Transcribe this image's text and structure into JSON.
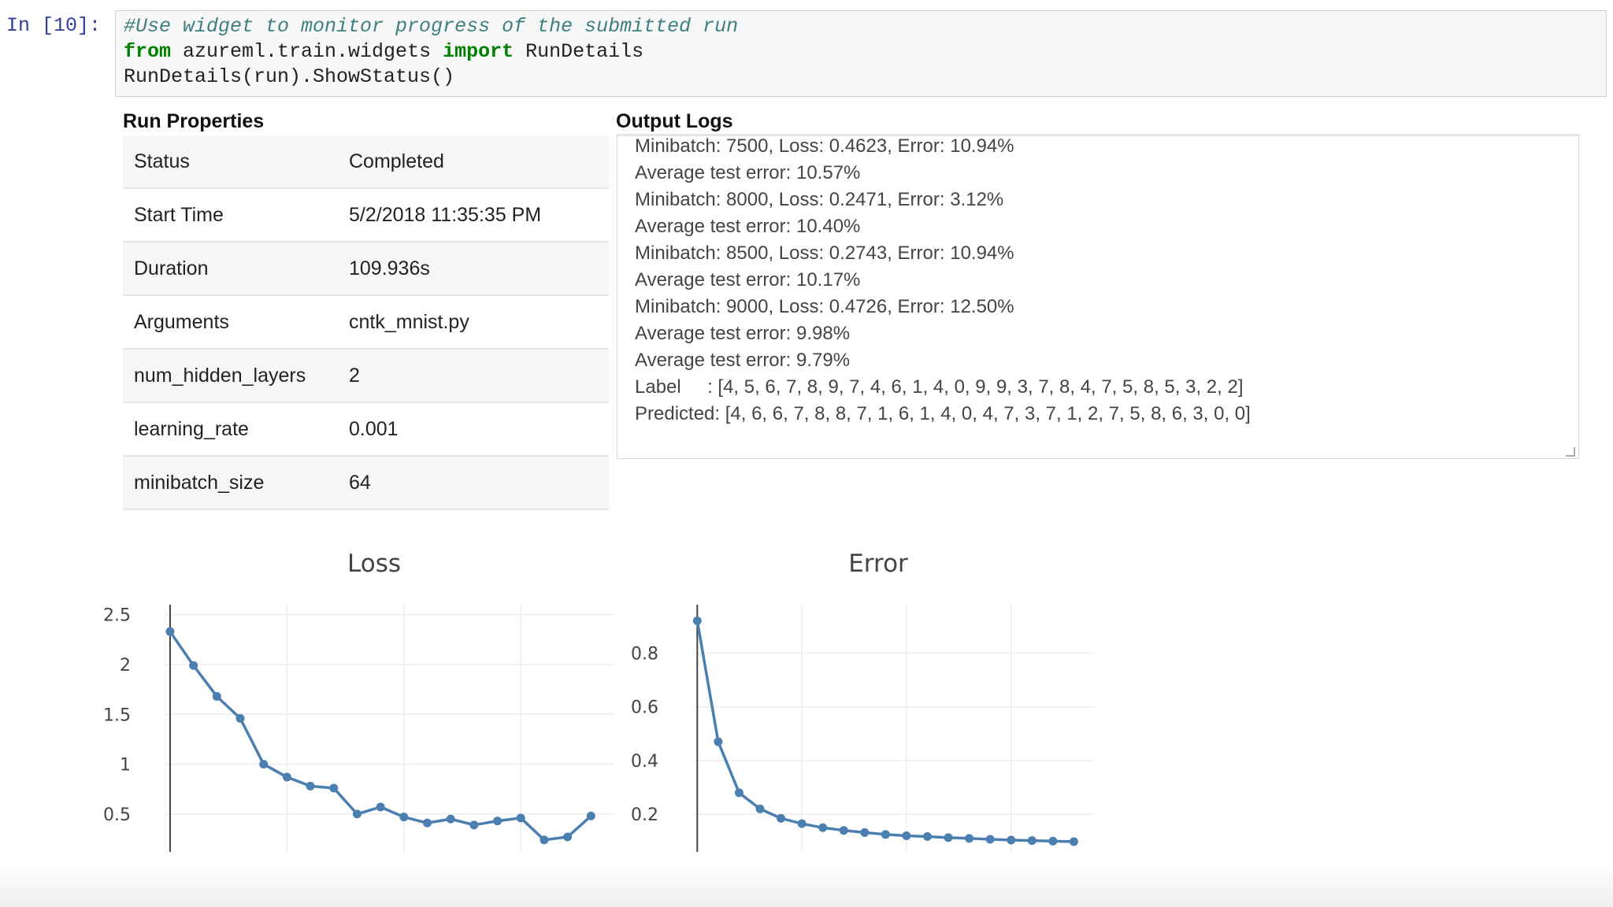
{
  "cell": {
    "prompt": "In [10]:",
    "comment": "#Use widget to monitor progress of the submitted run",
    "kw_from": "from",
    "module": " azureml.train.widgets ",
    "kw_import": "import",
    "imported": " RunDetails",
    "call": "RunDetails(run).ShowStatus()"
  },
  "run_properties": {
    "title": "Run Properties",
    "rows": [
      {
        "key": "Status",
        "value": "Completed"
      },
      {
        "key": "Start Time",
        "value": "5/2/2018 11:35:35 PM"
      },
      {
        "key": "Duration",
        "value": "109.936s"
      },
      {
        "key": "Arguments",
        "value": "cntk_mnist.py"
      },
      {
        "key": "num_hidden_layers",
        "value": "2"
      },
      {
        "key": "learning_rate",
        "value": "0.001"
      },
      {
        "key": "minibatch_size",
        "value": "64"
      }
    ]
  },
  "output_logs": {
    "title": "Output Logs",
    "lines": [
      "Minibatch: 7500, Loss: 0.4623, Error: 10.94%",
      "Average test error: 10.57%",
      "Minibatch: 8000, Loss: 0.2471, Error: 3.12%",
      "Average test error: 10.40%",
      "Minibatch: 8500, Loss: 0.2743, Error: 10.94%",
      "Average test error: 10.17%",
      "Minibatch: 9000, Loss: 0.4726, Error: 12.50%",
      "Average test error: 9.98%",
      "Average test error: 9.79%",
      "Label     : [4, 5, 6, 7, 8, 9, 7, 4, 6, 1, 4, 0, 9, 9, 3, 7, 8, 4, 7, 5, 8, 5, 3, 2, 2]",
      "Predicted: [4, 6, 6, 7, 8, 8, 7, 1, 6, 1, 4, 0, 4, 7, 3, 7, 1, 2, 7, 5, 8, 6, 3, 0, 0]"
    ]
  },
  "colors": {
    "line": "#4a7fb0",
    "grid": "#eeeeee",
    "axis": "#444444",
    "tick_text": "#444444"
  },
  "chart_data": [
    {
      "type": "line",
      "title": "Loss",
      "xlabel": "",
      "ylabel": "",
      "xlim": [
        -0.2,
        19
      ],
      "ylim": [
        0.12,
        2.6
      ],
      "xticks": [
        0,
        5,
        10,
        15
      ],
      "yticks": [
        0.5,
        1,
        1.5,
        2,
        2.5
      ],
      "ytick_labels": [
        "0.5",
        "1",
        "1.5",
        "2",
        "2.5"
      ],
      "grid": true,
      "x": [
        0,
        1,
        2,
        3,
        4,
        5,
        6,
        7,
        8,
        9,
        10,
        11,
        12,
        13,
        14,
        15,
        16,
        17,
        18
      ],
      "series": [
        {
          "values": [
            2.33,
            1.99,
            1.68,
            1.46,
            1.0,
            0.87,
            0.78,
            0.76,
            0.5,
            0.57,
            0.47,
            0.41,
            0.45,
            0.39,
            0.43,
            0.46,
            0.24,
            0.27,
            0.48
          ]
        }
      ]
    },
    {
      "type": "line",
      "title": "Error",
      "xlabel": "",
      "ylabel": "",
      "xlim": [
        -0.2,
        19
      ],
      "ylim": [
        0.06,
        0.98
      ],
      "xticks": [
        0,
        5,
        10,
        15
      ],
      "yticks": [
        0.2,
        0.4,
        0.6,
        0.8
      ],
      "ytick_labels": [
        "0.2",
        "0.4",
        "0.6",
        "0.8"
      ],
      "grid": true,
      "x": [
        0,
        1,
        2,
        3,
        4,
        5,
        6,
        7,
        8,
        9,
        10,
        11,
        12,
        13,
        14,
        15,
        16,
        17,
        18
      ],
      "series": [
        {
          "values": [
            0.92,
            0.47,
            0.28,
            0.22,
            0.185,
            0.165,
            0.15,
            0.14,
            0.132,
            0.125,
            0.12,
            0.117,
            0.113,
            0.11,
            0.107,
            0.104,
            0.102,
            0.1,
            0.098
          ]
        }
      ]
    }
  ]
}
